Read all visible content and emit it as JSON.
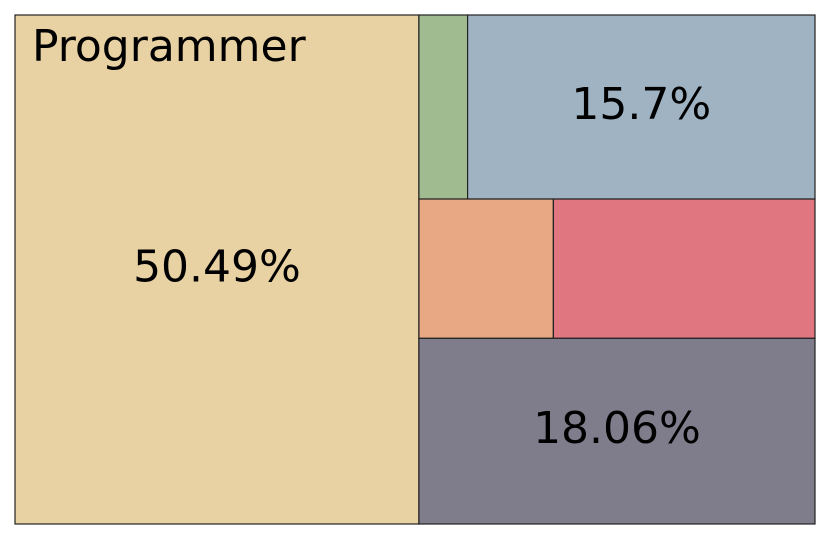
{
  "chart_data": {
    "type": "treemap",
    "categories": [
      "Programmer",
      null,
      null,
      null,
      null,
      null
    ],
    "values": [
      50.49,
      2.2,
      15.7,
      4.6,
      8.95,
      18.06
    ],
    "value_labels": [
      "50.49%",
      null,
      "15.7%",
      null,
      null,
      "18.06%"
    ],
    "colors": [
      "#e8d1a3",
      "#a0bb8f",
      "#9fb3c3",
      "#e8a883",
      "#e07780",
      "#7f7d8c"
    ]
  }
}
